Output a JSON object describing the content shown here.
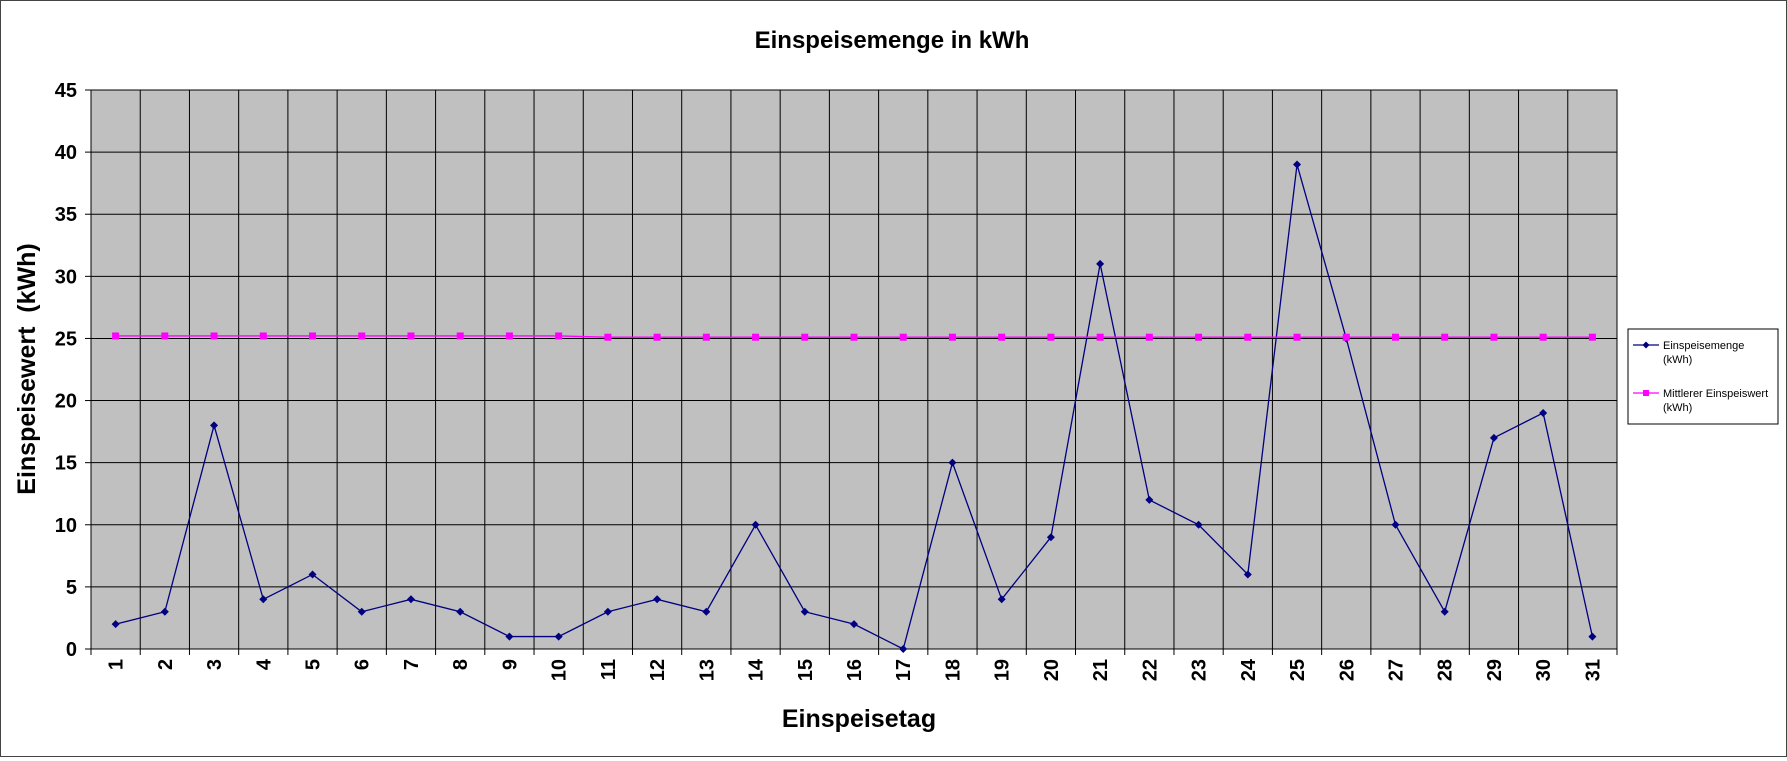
{
  "chart_data": {
    "type": "line",
    "title": "Einspeisemenge in kWh",
    "xlabel": "Einspeisetag",
    "ylabel": "Einspeisewert  (kWh)",
    "ylim": [
      0,
      45
    ],
    "yticks": [
      "0",
      "5",
      "10",
      "15",
      "20",
      "25",
      "30",
      "35",
      "40",
      "45"
    ],
    "categories": [
      "1",
      "2",
      "3",
      "4",
      "5",
      "6",
      "7",
      "8",
      "9",
      "10",
      "11",
      "12",
      "13",
      "14",
      "15",
      "16",
      "17",
      "18",
      "19",
      "20",
      "21",
      "22",
      "23",
      "24",
      "25",
      "26",
      "27",
      "28",
      "29",
      "30",
      "31"
    ],
    "grid": true,
    "legend_position": "right",
    "plot_background": "#c0c0c0",
    "series": [
      {
        "name": "Einspeisemenge (kWh)",
        "legend_lines": [
          "Einspeisemenge",
          "(kWh)"
        ],
        "color": "#000080",
        "marker": "diamond",
        "values": [
          2,
          3,
          18,
          4,
          6,
          3,
          4,
          3,
          1,
          1,
          3,
          4,
          3,
          10,
          3,
          2,
          0,
          15,
          4,
          9,
          31,
          12,
          10,
          6,
          39,
          25,
          10,
          3,
          17,
          19,
          1
        ]
      },
      {
        "name": "Mittlerer Einspeiswert (kWh)",
        "legend_lines": [
          "Mittlerer Einspeiswert",
          "(kWh)"
        ],
        "color": "#ff00ff",
        "marker": "square",
        "values": [
          25.2,
          25.2,
          25.2,
          25.2,
          25.2,
          25.2,
          25.2,
          25.2,
          25.2,
          25.2,
          25.1,
          25.1,
          25.1,
          25.1,
          25.1,
          25.1,
          25.1,
          25.1,
          25.1,
          25.1,
          25.1,
          25.1,
          25.1,
          25.1,
          25.1,
          25.1,
          25.1,
          25.1,
          25.1,
          25.1,
          25.1
        ]
      }
    ]
  }
}
